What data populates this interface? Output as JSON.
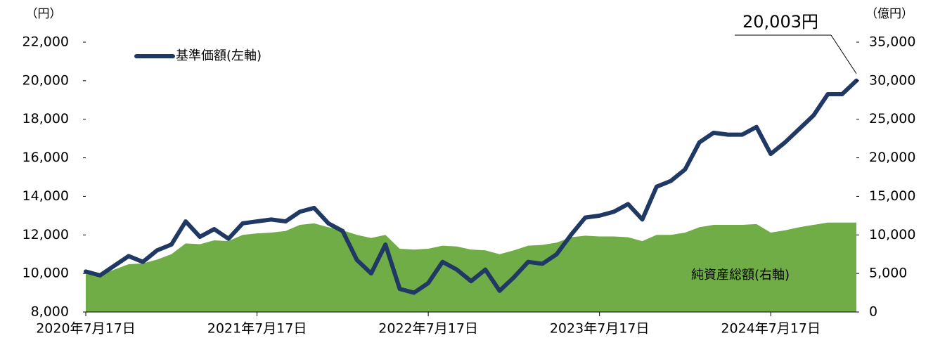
{
  "chart_data": {
    "type": "line-area",
    "y_unit_label": "（円）",
    "y2_unit_label": "（億円）",
    "annotation": "20,003円",
    "categories": [
      "2020年7月17日",
      null,
      null,
      null,
      null,
      null,
      null,
      null,
      null,
      null,
      null,
      null,
      "2021年7月17日",
      null,
      null,
      null,
      null,
      null,
      null,
      null,
      null,
      null,
      null,
      null,
      "2022年7月17日",
      null,
      null,
      null,
      null,
      null,
      null,
      null,
      null,
      null,
      null,
      null,
      "2023年7月17日",
      null,
      null,
      null,
      null,
      null,
      null,
      null,
      null,
      null,
      null,
      null,
      "2024年7月17日",
      null,
      null,
      null,
      null,
      null,
      null
    ],
    "series": [
      {
        "name": "純資産総額(右軸)",
        "kind": "area",
        "axis": "y2",
        "color": "#70ad47",
        "values": [
          5000,
          4800,
          5500,
          6200,
          6300,
          6800,
          7500,
          8900,
          8800,
          9300,
          9200,
          10000,
          10200,
          10300,
          10500,
          11300,
          11500,
          11000,
          10600,
          10000,
          9600,
          10000,
          8200,
          8100,
          8200,
          8600,
          8500,
          8100,
          8000,
          7500,
          8000,
          8600,
          8700,
          9000,
          9700,
          9900,
          9800,
          9800,
          9700,
          9200,
          10000,
          10000,
          10300,
          11000,
          11300,
          11300,
          11300,
          11400,
          10300,
          10600,
          11000,
          11300,
          11600,
          11600,
          11600
        ]
      },
      {
        "name": "基準価額(左軸)",
        "kind": "line",
        "color": "#1f3864",
        "values": [
          10100,
          9900,
          10400,
          10900,
          10600,
          11200,
          11500,
          12700,
          11900,
          12300,
          11800,
          12600,
          12700,
          12800,
          12700,
          13200,
          13400,
          12600,
          12200,
          10700,
          10000,
          11500,
          9200,
          9000,
          9500,
          10600,
          10200,
          9600,
          10200,
          9100,
          9800,
          10600,
          10500,
          11000,
          12000,
          12900,
          13000,
          13200,
          13600,
          12800,
          14500,
          14800,
          15400,
          16800,
          17300,
          17200,
          17200,
          17600,
          16200,
          16800,
          17500,
          18200,
          19300,
          19300,
          20003
        ]
      }
    ],
    "ylim": [
      8000,
      22000
    ],
    "yticks": [
      {
        "value": 8000,
        "label": "8,000"
      },
      {
        "value": 10000,
        "label": "10,000"
      },
      {
        "value": 12000,
        "label": "12,000"
      },
      {
        "value": 14000,
        "label": "14,000"
      },
      {
        "value": 16000,
        "label": "16,000"
      },
      {
        "value": 18000,
        "label": "18,000"
      },
      {
        "value": 20000,
        "label": "20,000"
      },
      {
        "value": 22000,
        "label": "22,000"
      }
    ],
    "y2lim": [
      0,
      35000
    ],
    "y2ticks": [
      0,
      {
        "value": 5000,
        "label": "5,000"
      },
      {
        "value": 10000,
        "label": "10,000"
      },
      {
        "value": 15000,
        "label": "15,000"
      },
      {
        "value": 20000,
        "label": "20,000"
      },
      {
        "value": 25000,
        "label": "25,000"
      },
      {
        "value": 30000,
        "label": "30,000"
      },
      {
        "value": 35000,
        "label": "35,000"
      }
    ],
    "grid": false
  }
}
